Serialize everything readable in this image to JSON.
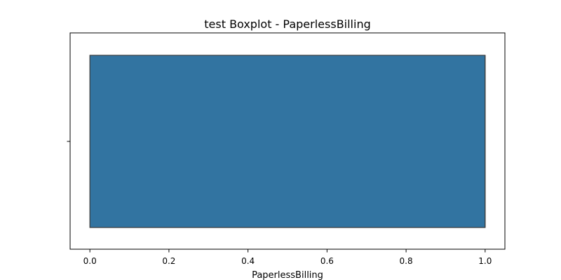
{
  "chart_data": {
    "type": "boxplot",
    "title": "test Boxplot - PaperlessBilling",
    "xlabel": "PaperlessBilling",
    "ylabel": "",
    "xlim": [
      -0.05,
      1.05
    ],
    "xticks": [
      0.0,
      0.2,
      0.4,
      0.6,
      0.8,
      1.0
    ],
    "xtick_labels": [
      "0.0",
      "0.2",
      "0.4",
      "0.6",
      "0.8",
      "1.0"
    ],
    "orientation": "horizontal",
    "grid": false,
    "box": {
      "min": 0.0,
      "q1": 0.0,
      "median": 1.0,
      "q3": 1.0,
      "max": 1.0
    },
    "colors": {
      "box_fill": "#3274a1",
      "box_edge": "#3b3b3b",
      "axes": "#000000"
    }
  }
}
